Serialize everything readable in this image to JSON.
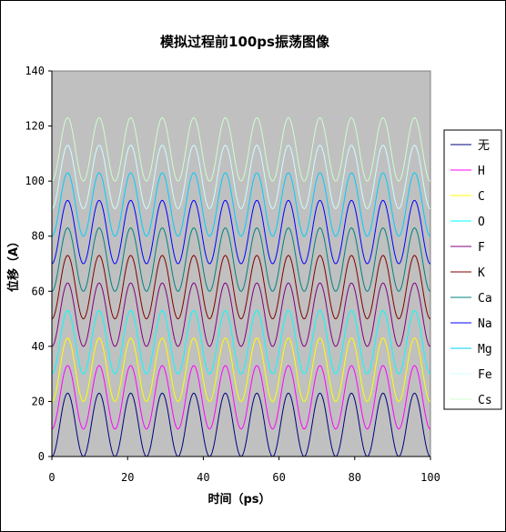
{
  "chart_data": {
    "type": "line",
    "title": "模拟过程前100ps振荡图像",
    "xlabel": "时间（ps）",
    "ylabel": "位移（A）",
    "xlim": [
      0,
      100
    ],
    "ylim": [
      0,
      140
    ],
    "x_ticks": [
      0,
      20,
      40,
      60,
      80,
      100
    ],
    "y_ticks": [
      0,
      20,
      40,
      60,
      80,
      100,
      120,
      140
    ],
    "plot_background": "#c0c0c0",
    "grid": false,
    "legend_position": "right",
    "oscillation": {
      "period_ps": 8.33,
      "amplitude": 11.5
    },
    "series": [
      {
        "name": "无",
        "color": "#000080",
        "center": 11.5
      },
      {
        "name": "H",
        "color": "#ff00ff",
        "center": 21.5
      },
      {
        "name": "C",
        "color": "#ffff00",
        "center": 31.5
      },
      {
        "name": "O",
        "color": "#00ffff",
        "center": 41.5
      },
      {
        "name": "F",
        "color": "#800080",
        "center": 51.5
      },
      {
        "name": "K",
        "color": "#800000",
        "center": 61.5
      },
      {
        "name": "Ca",
        "color": "#008080",
        "center": 71.5
      },
      {
        "name": "Na",
        "color": "#0000ff",
        "center": 81.5
      },
      {
        "name": "Mg",
        "color": "#00ccff",
        "center": 91.5
      },
      {
        "name": "Fe",
        "color": "#ccffff",
        "center": 101.5
      },
      {
        "name": "Cs",
        "color": "#ccffcc",
        "center": 111.5
      }
    ]
  }
}
